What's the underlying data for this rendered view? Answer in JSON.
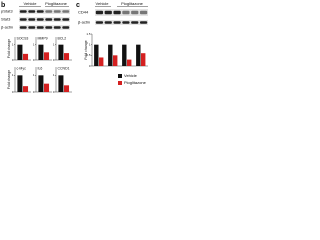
{
  "figure": {
    "panels": [
      {
        "letter": "b",
        "header": [
          "Vehicle",
          "Pioglitazone"
        ],
        "blots": [
          "pStat3",
          "Stat3",
          "β-actin"
        ]
      },
      {
        "letter": "c",
        "header": [
          "Vehicle",
          "Pioglitazone"
        ],
        "blots": [
          "CD44",
          "β-actin"
        ]
      }
    ]
  },
  "chart_data": [
    {
      "type": "bar",
      "title": "SOCS3",
      "y_label": "Fold change",
      "categories": [
        null
      ],
      "series": [
        {
          "name": "Vehicle",
          "color": "#111111",
          "values": [
            1
          ]
        },
        {
          "name": "Pioglitazone",
          "color": "#d42020",
          "values": [
            0.4
          ]
        }
      ],
      "ylim": [
        0,
        1.5
      ],
      "yticks": [
        0,
        1
      ]
    },
    {
      "type": "bar",
      "title": "MMP9",
      "categories": [
        null
      ],
      "series": [
        {
          "name": "Vehicle",
          "color": "#111111",
          "values": [
            1
          ]
        },
        {
          "name": "Pioglitazone",
          "color": "#d42020",
          "values": [
            0.5
          ]
        }
      ],
      "ylim": [
        0,
        1.5
      ],
      "yticks": [
        0,
        1
      ]
    },
    {
      "type": "bar",
      "title": "BCL2",
      "categories": [
        null
      ],
      "series": [
        {
          "name": "Vehicle",
          "color": "#111111",
          "values": [
            1
          ]
        },
        {
          "name": "Pioglitazone",
          "color": "#d42020",
          "values": [
            0.45
          ]
        }
      ],
      "ylim": [
        0,
        1.5
      ],
      "yticks": [
        0,
        1
      ]
    },
    {
      "type": "bar",
      "title": "c-Myc",
      "y_label": "Fold change",
      "categories": [
        null
      ],
      "series": [
        {
          "name": "Vehicle",
          "color": "#111111",
          "values": [
            1
          ]
        },
        {
          "name": "Pioglitazone",
          "color": "#d42020",
          "values": [
            0.35
          ]
        }
      ],
      "ylim": [
        0,
        1.5
      ],
      "yticks": [
        0,
        1
      ]
    },
    {
      "type": "bar",
      "title": "IL6",
      "categories": [
        null
      ],
      "series": [
        {
          "name": "Vehicle",
          "color": "#111111",
          "values": [
            1
          ]
        },
        {
          "name": "Pioglitazone",
          "color": "#d42020",
          "values": [
            0.5
          ]
        }
      ],
      "ylim": [
        0,
        1.5
      ],
      "yticks": [
        0,
        1
      ]
    },
    {
      "type": "bar",
      "title": "CCND1",
      "categories": [
        null
      ],
      "series": [
        {
          "name": "Vehicle",
          "color": "#111111",
          "values": [
            1
          ]
        },
        {
          "name": "Pioglitazone",
          "color": "#d42020",
          "values": [
            0.4
          ]
        }
      ],
      "ylim": [
        0,
        1.5
      ],
      "yticks": [
        0,
        1
      ]
    },
    {
      "type": "bar",
      "y_label": "Fold change",
      "categories": [
        null,
        null,
        null,
        null
      ],
      "series": [
        {
          "name": "Vehicle",
          "color": "#111111",
          "values": [
            1,
            1,
            1,
            1
          ]
        },
        {
          "name": "Pioglitazone",
          "color": "#d42020",
          "values": [
            0.4,
            0.5,
            0.3,
            0.6
          ]
        }
      ],
      "ylim": [
        0,
        1.5
      ],
      "yticks": [
        0,
        0.5,
        1,
        1.5
      ],
      "legend": true
    }
  ]
}
